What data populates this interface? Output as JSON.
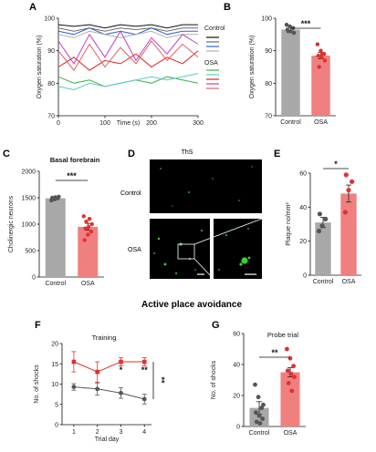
{
  "figure": {
    "section_title": "Active place avoidance",
    "micro_image_label": "ThS",
    "micro_row_labels": [
      "Control",
      "OSA"
    ]
  },
  "panel_labels": [
    "A",
    "B",
    "C",
    "D",
    "E",
    "F",
    "G"
  ],
  "colors": {
    "control": "#a8a8a8",
    "osa": "#f08080",
    "osa_dot": "#e03030",
    "control_dot": "#555555",
    "traces_control": [
      "#111111",
      "#6b6b6b",
      "#3060d0",
      "#b0b0b0"
    ],
    "traces_osa": [
      "#3db33d",
      "#58c8d0",
      "#e02020",
      "#c040c0",
      "#e06060"
    ]
  },
  "chart_data": [
    {
      "id": "A",
      "type": "line",
      "xlabel": "Time (s)",
      "ylabel": "Oxygen saturation (%)",
      "xlim": [
        0,
        300
      ],
      "ylim": [
        70,
        100
      ],
      "xticks": [
        0,
        100,
        200,
        300
      ],
      "yticks": [
        70,
        80,
        90,
        100
      ],
      "legend": [
        "Control",
        "OSA"
      ],
      "legend_position": "right",
      "series": [
        {
          "group": "Control",
          "values": [
            98,
            97.5,
            98,
            97,
            98,
            97.5,
            98,
            97,
            98,
            98
          ]
        },
        {
          "group": "Control",
          "values": [
            97,
            96,
            97,
            96,
            97,
            96.5,
            97,
            96,
            97,
            97
          ]
        },
        {
          "group": "Control",
          "values": [
            96,
            95,
            97,
            95,
            96,
            95,
            97,
            95,
            96,
            96
          ]
        },
        {
          "group": "Control",
          "values": [
            95,
            94,
            96,
            95,
            94,
            95,
            96,
            94,
            95,
            95
          ]
        },
        {
          "group": "OSA",
          "values": [
            82,
            80,
            81,
            79,
            80,
            81,
            80,
            82,
            81,
            80
          ]
        },
        {
          "group": "OSA",
          "values": [
            79,
            78,
            80,
            79,
            80,
            81,
            82,
            81,
            82,
            83
          ]
        },
        {
          "group": "OSA",
          "values": [
            85,
            88,
            84,
            87,
            86,
            89,
            85,
            88,
            86,
            90
          ]
        },
        {
          "group": "OSA",
          "values": [
            93,
            86,
            95,
            88,
            96,
            87,
            94,
            89,
            95,
            92
          ]
        },
        {
          "group": "OSA",
          "values": [
            90,
            84,
            92,
            85,
            91,
            86,
            93,
            87,
            92,
            88
          ]
        }
      ]
    },
    {
      "id": "B",
      "type": "bar",
      "categories": [
        "Control",
        "OSA"
      ],
      "values": [
        96.5,
        88.5
      ],
      "errors": [
        0.8,
        1.0
      ],
      "points": [
        [
          98,
          97.5,
          97,
          96.5,
          96,
          95.5,
          96
        ],
        [
          92,
          90,
          89,
          88.5,
          88,
          87,
          85,
          89
        ]
      ],
      "ylabel": "Oxygen saturation (%)",
      "ylim": [
        70,
        100
      ],
      "yticks": [
        70,
        80,
        90,
        100
      ],
      "significance": "***"
    },
    {
      "id": "C",
      "type": "bar",
      "title": "Basal forebrain",
      "categories": [
        "Control",
        "OSA"
      ],
      "values": [
        1490,
        950
      ],
      "errors": [
        20,
        65
      ],
      "points": [
        [
          1450,
          1470,
          1490,
          1500,
          1510,
          1520,
          1480,
          1495
        ],
        [
          700,
          800,
          860,
          920,
          950,
          1000,
          1050,
          1100,
          1150
        ]
      ],
      "ylabel": "Cholinergic neurons",
      "ylim": [
        0,
        2000
      ],
      "yticks": [
        0,
        500,
        1000,
        1500,
        2000
      ],
      "significance": "***"
    },
    {
      "id": "E",
      "type": "bar",
      "categories": [
        "Control",
        "OSA"
      ],
      "values": [
        31,
        48
      ],
      "errors": [
        3,
        5
      ],
      "points": [
        [
          26,
          29,
          33,
          36
        ],
        [
          37,
          50,
          55,
          59
        ]
      ],
      "ylabel": "Plaque no/mm²",
      "ylim": [
        0,
        60
      ],
      "yticks": [
        0,
        20,
        40,
        60
      ],
      "significance": "*"
    },
    {
      "id": "F",
      "type": "line",
      "title": "Training",
      "x": [
        1,
        2,
        3,
        4
      ],
      "xlabel": "Trial day",
      "ylabel": "No. of shocks",
      "xlim": [
        0.5,
        4.3
      ],
      "ylim": [
        0,
        20
      ],
      "xticks": [
        1,
        2,
        3,
        4
      ],
      "yticks": [
        0,
        5,
        10,
        15,
        20
      ],
      "series": [
        {
          "group": "OSA",
          "values": [
            15.5,
            13,
            15.5,
            15.5
          ],
          "errors": [
            2.5,
            2.5,
            1,
            1
          ]
        },
        {
          "group": "Control",
          "values": [
            9.3,
            8.8,
            7.8,
            6.3
          ],
          "errors": [
            0.8,
            1.5,
            1.3,
            1.2
          ]
        }
      ],
      "annotations": [
        "*",
        "**",
        "**"
      ]
    },
    {
      "id": "G",
      "type": "bar",
      "title": "Probe trial",
      "categories": [
        "Control",
        "OSA"
      ],
      "values": [
        12,
        35
      ],
      "errors": [
        4,
        3
      ],
      "points": [
        [
          27,
          19,
          12,
          9,
          7,
          5,
          3,
          2,
          14
        ],
        [
          50,
          44,
          39,
          36,
          34,
          32,
          28,
          23
        ]
      ],
      "ylabel": "No. of shocks",
      "ylim": [
        0,
        60
      ],
      "yticks": [
        0,
        20,
        40,
        60
      ],
      "significance": "**"
    }
  ]
}
